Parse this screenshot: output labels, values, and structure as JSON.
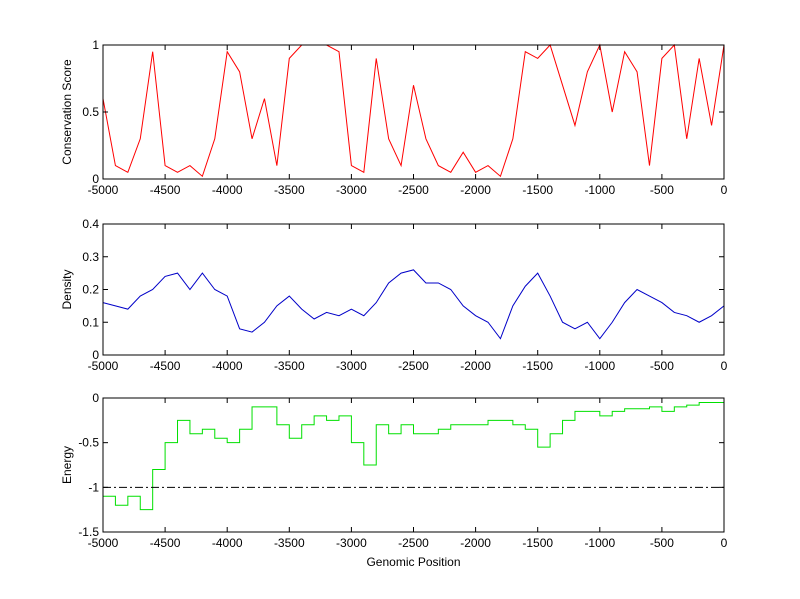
{
  "chart_data": [
    {
      "type": "line",
      "ylabel": "Conservation Score",
      "color": "#ff0000",
      "x": [
        -5000,
        -4900,
        -4800,
        -4700,
        -4600,
        -4500,
        -4400,
        -4300,
        -4200,
        -4100,
        -4000,
        -3900,
        -3800,
        -3700,
        -3600,
        -3500,
        -3400,
        -3300,
        -3200,
        -3100,
        -3000,
        -2900,
        -2800,
        -2700,
        -2600,
        -2500,
        -2400,
        -2300,
        -2200,
        -2100,
        -2000,
        -1900,
        -1800,
        -1700,
        -1600,
        -1500,
        -1400,
        -1300,
        -1200,
        -1100,
        -1000,
        -900,
        -800,
        -700,
        -600,
        -500,
        -400,
        -300,
        -200,
        -100,
        0
      ],
      "values": [
        0.6,
        0.1,
        0.05,
        0.3,
        0.95,
        0.1,
        0.05,
        0.1,
        0.02,
        0.3,
        0.95,
        0.8,
        0.3,
        0.6,
        0.1,
        0.9,
        1,
        1,
        1,
        0.95,
        0.1,
        0.05,
        0.9,
        0.3,
        0.1,
        0.7,
        0.3,
        0.1,
        0.05,
        0.2,
        0.05,
        0.1,
        0.02,
        0.3,
        0.95,
        0.9,
        1,
        0.7,
        0.4,
        0.8,
        1,
        0.5,
        0.95,
        0.8,
        0.1,
        0.9,
        1,
        0.3,
        0.9,
        0.4,
        1
      ],
      "xlim": [
        -5000,
        0
      ],
      "xticks": [
        -5000,
        -4500,
        -4000,
        -3500,
        -3000,
        -2500,
        -2000,
        -1500,
        -1000,
        -500,
        0
      ],
      "ylim": [
        0,
        1
      ],
      "yticks": [
        0,
        0.5,
        1
      ]
    },
    {
      "type": "line",
      "ylabel": "Density",
      "color": "#0000c8",
      "x": [
        -5000,
        -4900,
        -4800,
        -4700,
        -4600,
        -4500,
        -4400,
        -4300,
        -4200,
        -4100,
        -4000,
        -3900,
        -3800,
        -3700,
        -3600,
        -3500,
        -3400,
        -3300,
        -3200,
        -3100,
        -3000,
        -2900,
        -2800,
        -2700,
        -2600,
        -2500,
        -2400,
        -2300,
        -2200,
        -2100,
        -2000,
        -1900,
        -1800,
        -1700,
        -1600,
        -1500,
        -1400,
        -1300,
        -1200,
        -1100,
        -1000,
        -900,
        -800,
        -700,
        -600,
        -500,
        -400,
        -300,
        -200,
        -100,
        0
      ],
      "values": [
        0.16,
        0.15,
        0.14,
        0.18,
        0.2,
        0.24,
        0.25,
        0.2,
        0.25,
        0.2,
        0.18,
        0.08,
        0.07,
        0.1,
        0.15,
        0.18,
        0.14,
        0.11,
        0.13,
        0.12,
        0.14,
        0.12,
        0.16,
        0.22,
        0.25,
        0.26,
        0.22,
        0.22,
        0.2,
        0.15,
        0.12,
        0.1,
        0.05,
        0.15,
        0.21,
        0.25,
        0.18,
        0.1,
        0.08,
        0.1,
        0.05,
        0.1,
        0.16,
        0.2,
        0.18,
        0.16,
        0.13,
        0.12,
        0.1,
        0.12,
        0.15
      ],
      "xlim": [
        -5000,
        0
      ],
      "xticks": [
        -5000,
        -4500,
        -4000,
        -3500,
        -3000,
        -2500,
        -2000,
        -1500,
        -1000,
        -500,
        0
      ],
      "ylim": [
        0,
        0.4
      ],
      "yticks": [
        0,
        0.1,
        0.2,
        0.3,
        0.4
      ]
    },
    {
      "type": "step",
      "ylabel": "Energy",
      "xlabel": "Genomic Position",
      "color": "#00e000",
      "x": [
        -5000,
        -4900,
        -4800,
        -4700,
        -4600,
        -4500,
        -4400,
        -4300,
        -4200,
        -4100,
        -4000,
        -3900,
        -3800,
        -3700,
        -3600,
        -3500,
        -3400,
        -3300,
        -3200,
        -3100,
        -3000,
        -2900,
        -2800,
        -2700,
        -2600,
        -2500,
        -2400,
        -2300,
        -2200,
        -2100,
        -2000,
        -1900,
        -1800,
        -1700,
        -1600,
        -1500,
        -1400,
        -1300,
        -1200,
        -1100,
        -1000,
        -900,
        -800,
        -700,
        -600,
        -500,
        -400,
        -300,
        -200,
        -100,
        0
      ],
      "values": [
        -1.1,
        -1.2,
        -1.1,
        -1.25,
        -0.8,
        -0.5,
        -0.25,
        -0.4,
        -0.35,
        -0.45,
        -0.5,
        -0.35,
        -0.1,
        -0.1,
        -0.3,
        -0.45,
        -0.3,
        -0.2,
        -0.25,
        -0.2,
        -0.5,
        -0.75,
        -0.3,
        -0.4,
        -0.3,
        -0.4,
        -0.4,
        -0.35,
        -0.3,
        -0.3,
        -0.3,
        -0.25,
        -0.25,
        -0.3,
        -0.35,
        -0.55,
        -0.4,
        -0.25,
        -0.15,
        -0.15,
        -0.2,
        -0.15,
        -0.12,
        -0.12,
        -0.1,
        -0.15,
        -0.1,
        -0.08,
        -0.05,
        -0.05,
        -0.07
      ],
      "reference_line": {
        "value": -1,
        "style": "dashdot",
        "color": "#000000"
      },
      "xlim": [
        -5000,
        0
      ],
      "xticks": [
        -5000,
        -4500,
        -4000,
        -3500,
        -3000,
        -2500,
        -2000,
        -1500,
        -1000,
        -500,
        0
      ],
      "ylim": [
        -1.5,
        0
      ],
      "yticks": [
        -1.5,
        -1,
        -0.5,
        0
      ]
    }
  ]
}
